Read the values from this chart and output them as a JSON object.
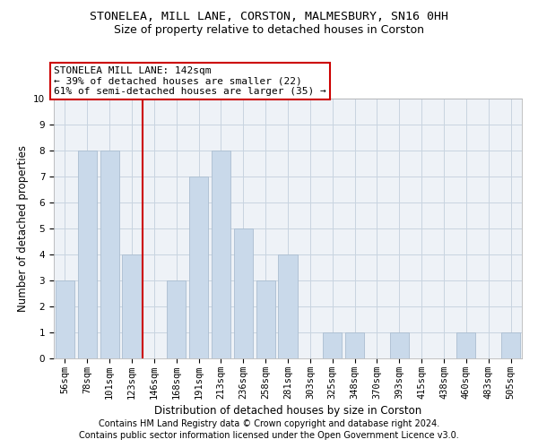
{
  "title1": "STONELEA, MILL LANE, CORSTON, MALMESBURY, SN16 0HH",
  "title2": "Size of property relative to detached houses in Corston",
  "xlabel": "Distribution of detached houses by size in Corston",
  "ylabel": "Number of detached properties",
  "categories": [
    "56sqm",
    "78sqm",
    "101sqm",
    "123sqm",
    "146sqm",
    "168sqm",
    "191sqm",
    "213sqm",
    "236sqm",
    "258sqm",
    "281sqm",
    "303sqm",
    "325sqm",
    "348sqm",
    "370sqm",
    "393sqm",
    "415sqm",
    "438sqm",
    "460sqm",
    "483sqm",
    "505sqm"
  ],
  "values": [
    3,
    8,
    8,
    4,
    0,
    3,
    7,
    8,
    5,
    3,
    4,
    0,
    1,
    1,
    0,
    1,
    0,
    0,
    1,
    0,
    1
  ],
  "bar_color": "#c9d9ea",
  "bar_edgecolor": "#aabdd0",
  "subject_line_index": 3.5,
  "subject_line_color": "#cc0000",
  "annotation_line1": "STONELEA MILL LANE: 142sqm",
  "annotation_line2": "← 39% of detached houses are smaller (22)",
  "annotation_line3": "61% of semi-detached houses are larger (35) →",
  "annotation_box_edgecolor": "#cc0000",
  "ylim": [
    0,
    10
  ],
  "yticks": [
    0,
    1,
    2,
    3,
    4,
    5,
    6,
    7,
    8,
    9,
    10
  ],
  "footnote1": "Contains HM Land Registry data © Crown copyright and database right 2024.",
  "footnote2": "Contains public sector information licensed under the Open Government Licence v3.0.",
  "bg_color": "#eef2f7",
  "grid_color": "#c8d4e0",
  "title1_fontsize": 9.5,
  "title2_fontsize": 9,
  "ylabel_fontsize": 8.5,
  "xlabel_fontsize": 8.5,
  "tick_fontsize": 7.5,
  "ann_fontsize": 8,
  "footnote_fontsize": 7
}
